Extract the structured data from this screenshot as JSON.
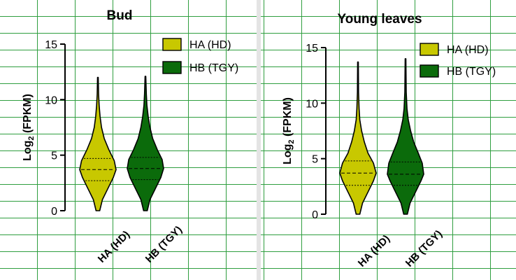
{
  "colors": {
    "ha": "#c8c800",
    "hb": "#0b6b0b",
    "grid": "#2f9e3f"
  },
  "chart_data": [
    {
      "type": "violin",
      "title": "Bud",
      "ylabel_main": "Log",
      "ylabel_sub": "2",
      "ylabel_rest": " (FPKM)",
      "ylim": [
        0,
        15
      ],
      "yticks": [
        "0",
        "5",
        "10",
        "15"
      ],
      "categories": [
        "HA (HD)",
        "HB (TGY)"
      ],
      "legend": [
        "HA (HD)",
        "HB (TGY)"
      ],
      "grid": false,
      "series": [
        {
          "name": "HA (HD)",
          "min": 0,
          "q1": 2.7,
          "median": 3.7,
          "q3": 4.7,
          "max": 12,
          "density": [
            [
              0,
              0.1
            ],
            [
              1,
              0.25
            ],
            [
              2,
              0.55
            ],
            [
              3,
              0.85
            ],
            [
              3.7,
              1.0
            ],
            [
              4.5,
              0.9
            ],
            [
              5.5,
              0.6
            ],
            [
              6.5,
              0.35
            ],
            [
              7.5,
              0.2
            ],
            [
              8.5,
              0.12
            ],
            [
              9.5,
              0.07
            ],
            [
              10.5,
              0.04
            ],
            [
              12,
              0.02
            ]
          ]
        },
        {
          "name": "HB (TGY)",
          "min": 0,
          "q1": 2.8,
          "median": 3.8,
          "q3": 4.8,
          "max": 12.1,
          "density": [
            [
              0,
              0.1
            ],
            [
              1,
              0.25
            ],
            [
              2,
              0.55
            ],
            [
              3,
              0.85
            ],
            [
              3.8,
              1.0
            ],
            [
              4.6,
              0.92
            ],
            [
              5.5,
              0.65
            ],
            [
              6.5,
              0.4
            ],
            [
              7.5,
              0.25
            ],
            [
              8.5,
              0.15
            ],
            [
              9.5,
              0.08
            ],
            [
              10.5,
              0.05
            ],
            [
              12.1,
              0.02
            ]
          ]
        }
      ]
    },
    {
      "type": "violin",
      "title": "Young leaves",
      "ylabel_main": "Log",
      "ylabel_sub": "2",
      "ylabel_rest": " (FPKM)",
      "ylim": [
        0,
        15
      ],
      "yticks": [
        "0",
        "5",
        "10",
        "15"
      ],
      "categories": [
        "HA (HD)",
        "HB (TGY)"
      ],
      "legend": [
        "HA (HD)",
        "HB (TGY)"
      ],
      "grid": false,
      "series": [
        {
          "name": "HA (HD)",
          "min": 0,
          "q1": 2.6,
          "median": 3.7,
          "q3": 4.8,
          "max": 13.7,
          "density": [
            [
              0,
              0.1
            ],
            [
              1,
              0.25
            ],
            [
              2,
              0.55
            ],
            [
              3,
              0.85
            ],
            [
              3.7,
              1.0
            ],
            [
              4.6,
              0.85
            ],
            [
              5.5,
              0.55
            ],
            [
              6.5,
              0.35
            ],
            [
              7.5,
              0.2
            ],
            [
              8.5,
              0.1
            ],
            [
              9.5,
              0.06
            ],
            [
              11,
              0.03
            ],
            [
              13.7,
              0.02
            ]
          ]
        },
        {
          "name": "HB (TGY)",
          "min": 0,
          "q1": 2.6,
          "median": 3.6,
          "q3": 4.7,
          "max": 14,
          "density": [
            [
              0,
              0.1
            ],
            [
              1,
              0.25
            ],
            [
              2,
              0.55
            ],
            [
              3,
              0.85
            ],
            [
              3.6,
              1.0
            ],
            [
              4.6,
              0.92
            ],
            [
              5.5,
              0.7
            ],
            [
              6.5,
              0.45
            ],
            [
              7.5,
              0.28
            ],
            [
              8.5,
              0.15
            ],
            [
              9.5,
              0.08
            ],
            [
              11,
              0.04
            ],
            [
              14,
              0.02
            ]
          ]
        }
      ]
    }
  ]
}
